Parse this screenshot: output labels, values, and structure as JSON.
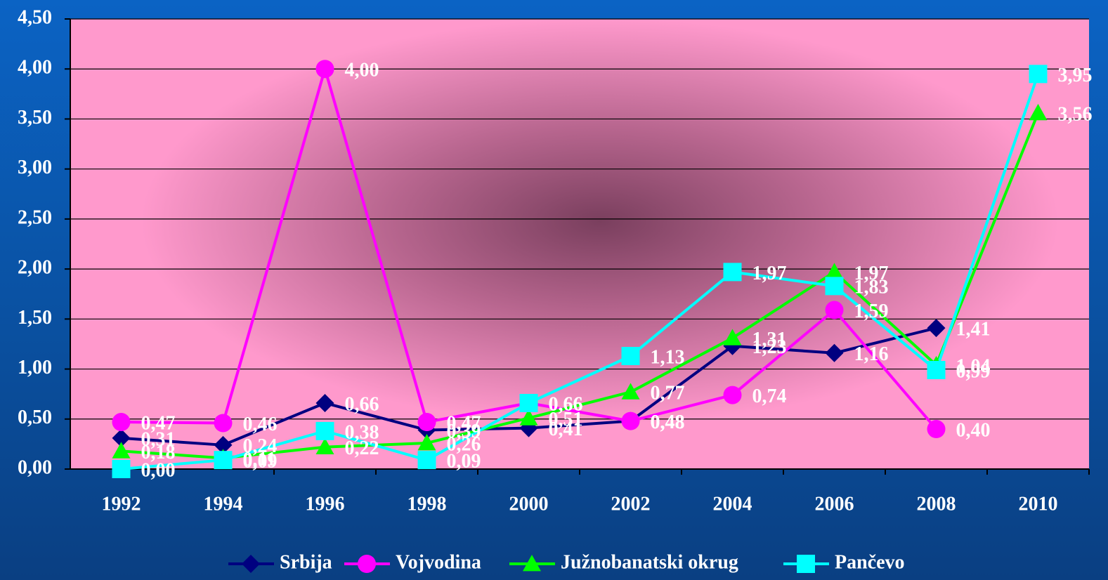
{
  "chart_data": {
    "type": "line",
    "categories": [
      "1992",
      "1994",
      "1996",
      "1998",
      "2000",
      "2002",
      "2004",
      "2006",
      "2008",
      "2010"
    ],
    "series": [
      {
        "name": "Srbija",
        "color": "#000080",
        "marker": "diamond",
        "values": [
          0.31,
          0.24,
          0.66,
          0.39,
          0.41,
          0.48,
          1.23,
          1.16,
          1.41,
          null
        ],
        "value_labels": [
          "0,31",
          "0,24",
          "0,66",
          "0,39",
          "0,41",
          "0,48",
          "1,23",
          "1,16",
          "1,41",
          null
        ]
      },
      {
        "name": "Vojvodina",
        "color": "#ff00ff",
        "marker": "circle",
        "values": [
          0.47,
          0.46,
          4.0,
          0.47,
          0.66,
          0.48,
          0.74,
          1.59,
          0.4,
          null
        ],
        "value_labels": [
          "0,47",
          "0,46",
          "4,00",
          "0,47",
          "0,66",
          "0,48",
          "0,74",
          "1,59",
          "0,40",
          null
        ]
      },
      {
        "name": "Južnobanatski okrug",
        "color": "#00ff00",
        "marker": "triangle",
        "values": [
          0.18,
          0.11,
          0.22,
          0.26,
          0.51,
          0.77,
          1.31,
          1.97,
          1.04,
          3.56
        ],
        "value_labels": [
          "0,18",
          "0,11",
          "0,22",
          "0,26",
          "0,51",
          "0,77",
          "1,31",
          "1,97",
          "1,04",
          "3,56"
        ]
      },
      {
        "name": "Pančevo",
        "color": "#00ffff",
        "marker": "square",
        "values": [
          0.0,
          0.09,
          0.38,
          0.09,
          0.66,
          1.13,
          1.97,
          1.83,
          0.99,
          3.95
        ],
        "value_labels": [
          "0,00",
          "0,09",
          "0,38",
          "0,09",
          "0,66",
          "1,13",
          "1,97",
          "1,83",
          "0,99",
          "3,95"
        ]
      }
    ],
    "ylim": [
      0,
      4.5
    ],
    "yticks": [
      {
        "value": 0,
        "label": "0,00"
      },
      {
        "value": 0.5,
        "label": "0,50"
      },
      {
        "value": 1,
        "label": "1,00"
      },
      {
        "value": 1.5,
        "label": "1,50"
      },
      {
        "value": 2,
        "label": "2,00"
      },
      {
        "value": 2.5,
        "label": "2,50"
      },
      {
        "value": 3,
        "label": "3,00"
      },
      {
        "value": 3.5,
        "label": "3,50"
      },
      {
        "value": 4,
        "label": "4,00"
      },
      {
        "value": 4.5,
        "label": "4,50"
      }
    ],
    "grid": true,
    "legend": "bottom"
  }
}
